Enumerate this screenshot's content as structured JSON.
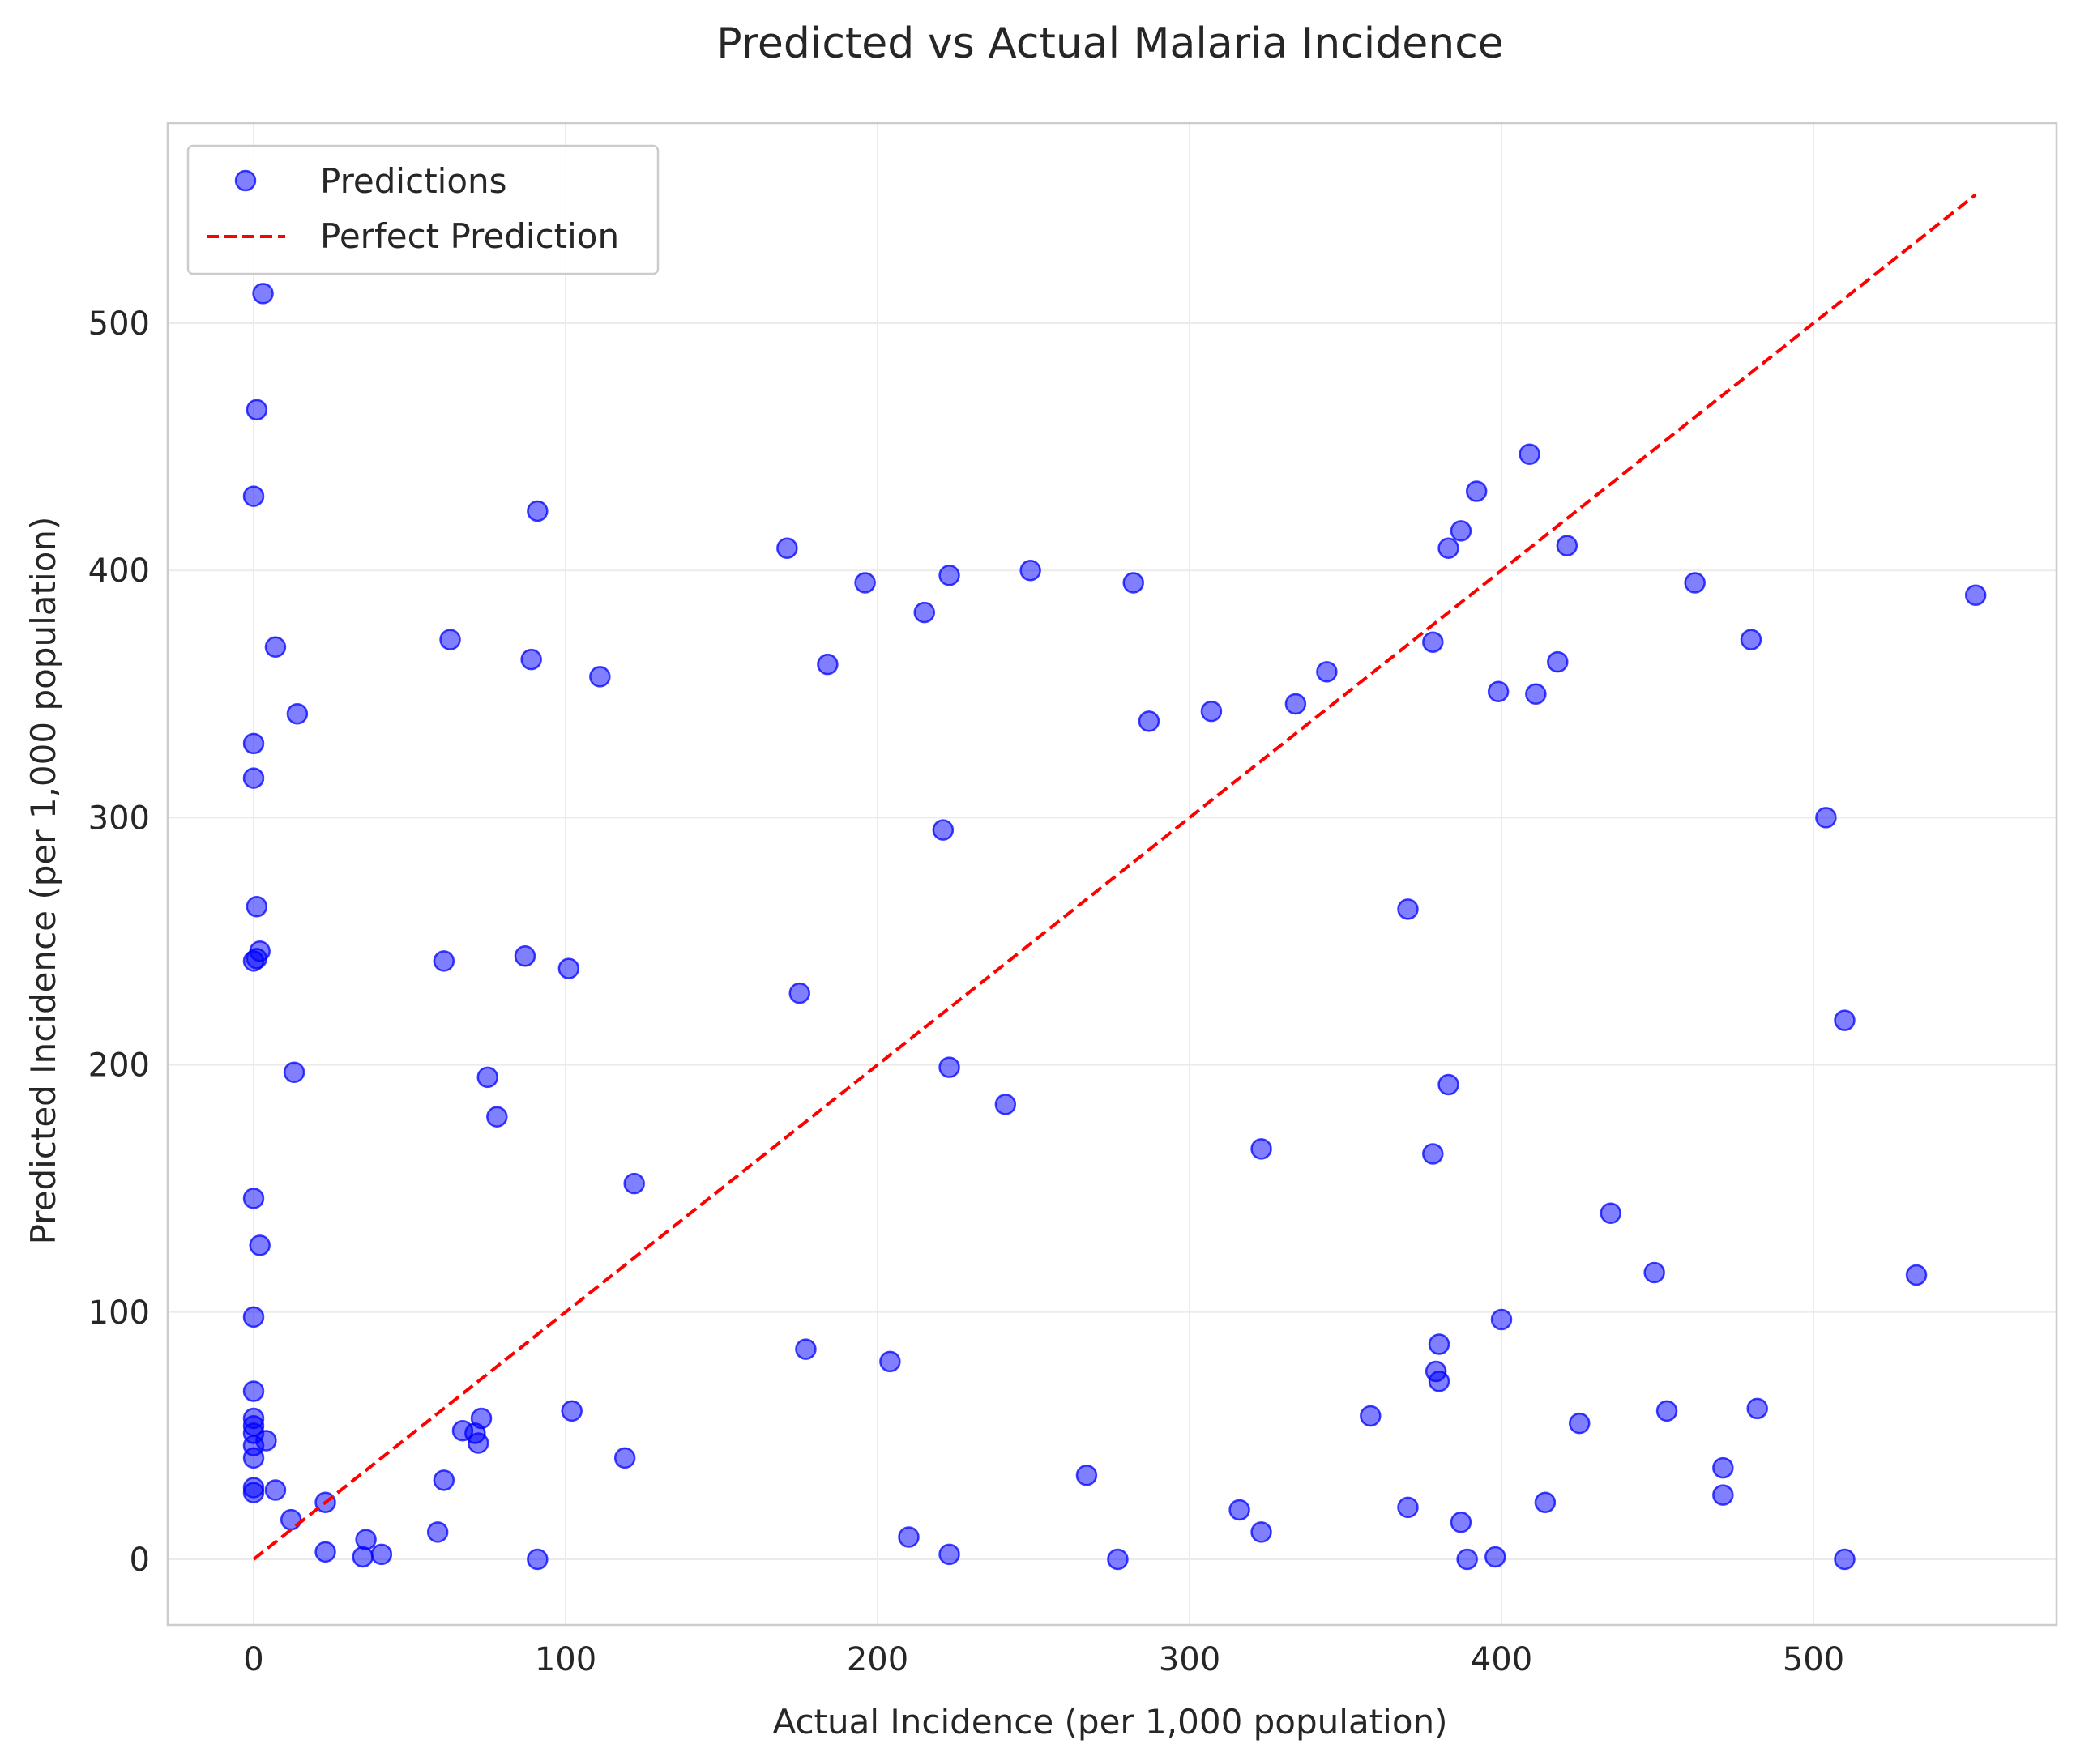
{
  "chart_data": {
    "type": "scatter",
    "title": "Predicted vs Actual Malaria Incidence",
    "xlabel": "Actual Incidence (per 1,000 population)",
    "ylabel": "Predicted Incidence (per 1,000 population)",
    "xlim": [
      -27,
      580
    ],
    "ylim": [
      -27,
      580
    ],
    "xticks": [
      0,
      100,
      200,
      300,
      400,
      500
    ],
    "yticks": [
      0,
      100,
      200,
      300,
      400,
      500
    ],
    "grid": true,
    "legend_position": "top-left",
    "series": [
      {
        "name": "Predictions",
        "kind": "scatter",
        "color": "#0000ff",
        "points": [
          [
            3,
            512
          ],
          [
            1,
            465
          ],
          [
            0,
            430
          ],
          [
            91,
            424
          ],
          [
            409,
            447
          ],
          [
            392,
            432
          ],
          [
            387,
            416
          ],
          [
            383,
            409
          ],
          [
            421,
            410
          ],
          [
            171,
            409
          ],
          [
            196,
            395
          ],
          [
            223,
            398
          ],
          [
            249,
            400
          ],
          [
            282,
            395
          ],
          [
            462,
            395
          ],
          [
            215,
            383
          ],
          [
            552,
            390
          ],
          [
            7,
            369
          ],
          [
            63,
            372
          ],
          [
            89,
            364
          ],
          [
            184,
            362
          ],
          [
            111,
            357
          ],
          [
            378,
            371
          ],
          [
            480,
            372
          ],
          [
            418,
            363
          ],
          [
            14,
            342
          ],
          [
            287,
            339
          ],
          [
            307,
            343
          ],
          [
            334,
            346
          ],
          [
            344,
            359
          ],
          [
            399,
            351
          ],
          [
            411,
            350
          ],
          [
            0,
            330
          ],
          [
            0,
            316
          ],
          [
            221,
            295
          ],
          [
            504,
            300
          ],
          [
            1,
            264
          ],
          [
            370,
            263
          ],
          [
            2,
            246
          ],
          [
            1,
            243
          ],
          [
            0,
            242
          ],
          [
            61,
            242
          ],
          [
            87,
            244
          ],
          [
            101,
            239
          ],
          [
            175,
            229
          ],
          [
            510,
            218
          ],
          [
            13,
            197
          ],
          [
            75,
            195
          ],
          [
            223,
            199
          ],
          [
            383,
            192
          ],
          [
            78,
            179
          ],
          [
            241,
            184
          ],
          [
            323,
            166
          ],
          [
            378,
            164
          ],
          [
            122,
            152
          ],
          [
            0,
            146
          ],
          [
            2,
            127
          ],
          [
            435,
            140
          ],
          [
            449,
            116
          ],
          [
            533,
            115
          ],
          [
            0,
            98
          ],
          [
            400,
            97
          ],
          [
            177,
            85
          ],
          [
            380,
            87
          ],
          [
            204,
            80
          ],
          [
            379,
            76
          ],
          [
            380,
            72
          ],
          [
            0,
            68
          ],
          [
            0,
            57
          ],
          [
            0,
            54
          ],
          [
            0,
            51
          ],
          [
            4,
            48
          ],
          [
            0,
            46
          ],
          [
            0,
            41
          ],
          [
            67,
            52
          ],
          [
            71,
            51
          ],
          [
            73,
            57
          ],
          [
            72,
            47
          ],
          [
            102,
            60
          ],
          [
            358,
            58
          ],
          [
            425,
            55
          ],
          [
            453,
            60
          ],
          [
            482,
            61
          ],
          [
            119,
            41
          ],
          [
            471,
            37
          ],
          [
            471,
            26
          ],
          [
            0,
            29
          ],
          [
            0,
            27
          ],
          [
            7,
            28
          ],
          [
            61,
            32
          ],
          [
            267,
            34
          ],
          [
            23,
            23
          ],
          [
            12,
            16
          ],
          [
            316,
            20
          ],
          [
            370,
            21
          ],
          [
            414,
            23
          ],
          [
            387,
            15
          ],
          [
            323,
            11
          ],
          [
            59,
            11
          ],
          [
            210,
            9
          ],
          [
            36,
            8
          ],
          [
            23,
            3
          ],
          [
            35,
            1
          ],
          [
            41,
            2
          ],
          [
            223,
            2
          ],
          [
            91,
            0
          ],
          [
            277,
            0
          ],
          [
            389,
            0
          ],
          [
            398,
            1
          ],
          [
            510,
            0
          ]
        ]
      },
      {
        "name": "Perfect Prediction",
        "kind": "line",
        "style": "dashed",
        "color": "#ff0000",
        "points": [
          [
            0,
            0
          ],
          [
            552,
            552
          ]
        ]
      }
    ]
  }
}
